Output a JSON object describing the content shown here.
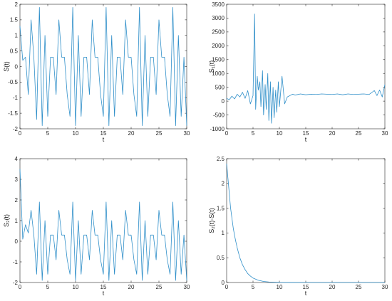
{
  "figure": {
    "line_color": "#2f8fc9",
    "axis_color": "#262626",
    "background": "#ffffff"
  },
  "chart_data": [
    {
      "type": "line",
      "title": "",
      "xlabel": "t",
      "ylabel": "S(t)",
      "xlim": [
        0,
        30
      ],
      "ylim": [
        -2,
        2
      ],
      "xticks": [
        0,
        5,
        10,
        15,
        20,
        25,
        30
      ],
      "yticks": [
        -2,
        -1.5,
        -1,
        -0.5,
        0,
        0.5,
        1,
        1.5,
        2
      ],
      "ytick_labels": [
        "-2",
        "-1.5",
        "-1",
        "-0.5",
        "0",
        "0.5",
        "1",
        "1.5",
        "2"
      ],
      "grid": false,
      "series": [
        {
          "x": [
            0,
            0.5,
            1.0,
            1.5,
            2.0,
            2.5,
            3.0,
            3.5,
            4.0,
            4.5,
            5.0,
            5.5,
            6.0,
            6.5,
            7.0,
            7.5,
            8.0,
            8.5,
            9.0,
            9.5,
            10.0,
            10.5,
            11.0,
            11.5,
            12.0,
            12.5,
            13.0,
            13.5,
            14.0,
            14.5,
            15.0,
            15.5,
            16.0,
            16.5,
            17.0,
            17.5,
            18.0,
            18.5,
            19.0,
            19.5,
            20.0,
            20.5,
            21.0,
            21.5,
            22.0,
            22.5,
            23.0,
            23.5,
            24.0,
            24.5,
            25.0,
            25.5,
            26.0,
            26.5,
            27.0,
            27.5,
            28.0,
            28.5,
            29.0,
            29.5,
            30.0
          ],
          "y": [
            1.3,
            0.2,
            0.3,
            -0.9,
            1.5,
            0.3,
            -1.7,
            1.9,
            -1.9,
            1.0,
            -1.6,
            0.3,
            0.3,
            -0.9,
            1.5,
            0.3,
            0.3,
            -0.9,
            -1.6,
            1.9,
            -1.9,
            1.0,
            -1.6,
            0.3,
            0.3,
            -0.9,
            1.5,
            0.3,
            0.3,
            -0.9,
            -1.6,
            1.9,
            -1.9,
            1.0,
            -1.6,
            0.3,
            0.3,
            -0.9,
            1.5,
            0.3,
            0.3,
            -0.9,
            -1.6,
            1.9,
            -1.9,
            1.0,
            -1.6,
            0.3,
            0.3,
            -0.9,
            1.5,
            0.3,
            0.3,
            -0.9,
            -1.6,
            1.9,
            -1.9,
            1.0,
            -1.6,
            0.3,
            -1.9
          ]
        }
      ]
    },
    {
      "type": "line",
      "title": "",
      "xlabel": "t",
      "ylabel": "S₁(t)",
      "xlim": [
        0,
        30
      ],
      "ylim": [
        -1000,
        3500
      ],
      "xticks": [
        0,
        5,
        10,
        15,
        20,
        25,
        30
      ],
      "yticks": [
        -1000,
        -500,
        0,
        500,
        1000,
        1500,
        2000,
        2500,
        3000,
        3500
      ],
      "ytick_labels": [
        "-1000",
        "-500",
        "0",
        "500",
        "1000",
        "1500",
        "2000",
        "2500",
        "3000",
        "3500"
      ],
      "grid": false,
      "series": [
        {
          "x": [
            0,
            0.5,
            1.0,
            1.5,
            2.0,
            2.5,
            3.0,
            3.5,
            4.0,
            4.5,
            5.0,
            5.3,
            5.5,
            5.8,
            6.0,
            6.3,
            6.5,
            6.8,
            7.0,
            7.3,
            7.5,
            7.8,
            8.0,
            8.3,
            8.5,
            8.8,
            9.0,
            9.3,
            9.5,
            9.8,
            10.0,
            10.5,
            11.0,
            11.5,
            12.0,
            12.5,
            13.0,
            14.0,
            15.0,
            16.0,
            17.0,
            18.0,
            19.0,
            20.0,
            21.0,
            22.0,
            23.0,
            24.0,
            25.0,
            26.0,
            27.0,
            28.0,
            28.5,
            29.0,
            29.5,
            30.0
          ],
          "y": [
            100,
            50,
            180,
            80,
            250,
            150,
            320,
            100,
            380,
            -100,
            200,
            3150,
            -300,
            900,
            400,
            700,
            -200,
            1100,
            -500,
            600,
            -300,
            1000,
            -700,
            700,
            -800,
            500,
            -600,
            400,
            -400,
            700,
            -200,
            900,
            -100,
            150,
            200,
            250,
            220,
            260,
            230,
            250,
            240,
            260,
            250,
            240,
            260,
            230,
            260,
            240,
            250,
            260,
            240,
            380,
            200,
            400,
            150,
            600
          ]
        }
      ]
    },
    {
      "type": "line",
      "title": "",
      "xlabel": "t",
      "ylabel": "S₂(t)",
      "xlim": [
        0,
        30
      ],
      "ylim": [
        -2,
        4
      ],
      "xticks": [
        0,
        5,
        10,
        15,
        20,
        25,
        30
      ],
      "yticks": [
        -2,
        -1,
        0,
        1,
        2,
        3,
        4
      ],
      "ytick_labels": [
        "-2",
        "-1",
        "0",
        "1",
        "2",
        "3",
        "4"
      ],
      "grid": false,
      "series": [
        {
          "x": [
            0,
            0.5,
            1.0,
            1.5,
            2.0,
            2.5,
            3.0,
            3.5,
            4.0,
            4.5,
            5.0,
            5.5,
            6.0,
            6.5,
            7.0,
            7.5,
            8.0,
            8.5,
            9.0,
            9.5,
            10.0,
            10.5,
            11.0,
            11.5,
            12.0,
            12.5,
            13.0,
            13.5,
            14.0,
            14.5,
            15.0,
            15.5,
            16.0,
            16.5,
            17.0,
            17.5,
            18.0,
            18.5,
            19.0,
            19.5,
            20.0,
            20.5,
            21.0,
            21.5,
            22.0,
            22.5,
            23.0,
            23.5,
            24.0,
            24.5,
            25.0,
            25.5,
            26.0,
            26.5,
            27.0,
            27.5,
            28.0,
            28.5,
            29.0,
            29.5,
            30.0
          ],
          "y": [
            3.5,
            0.1,
            0.8,
            0.4,
            1.5,
            0.3,
            -1.6,
            1.9,
            -1.9,
            1.0,
            -1.6,
            0.3,
            0.3,
            -0.9,
            1.5,
            0.3,
            0.3,
            -0.9,
            -1.6,
            1.9,
            -1.9,
            1.0,
            -1.6,
            0.3,
            0.3,
            -0.9,
            1.5,
            0.3,
            0.3,
            -0.9,
            -1.6,
            1.9,
            -1.9,
            1.0,
            -1.6,
            0.3,
            0.3,
            -0.9,
            1.5,
            0.3,
            0.3,
            -0.9,
            -1.6,
            1.9,
            -1.9,
            1.0,
            -1.6,
            0.3,
            0.3,
            -0.9,
            1.5,
            0.3,
            0.3,
            -0.9,
            -1.6,
            1.9,
            -1.9,
            1.0,
            -1.6,
            0.3,
            -1.9
          ]
        }
      ]
    },
    {
      "type": "line",
      "title": "",
      "xlabel": "t",
      "ylabel": "S₂(t)-S(t)",
      "xlim": [
        0,
        30
      ],
      "ylim": [
        0,
        2.5
      ],
      "xticks": [
        0,
        5,
        10,
        15,
        20,
        25,
        30
      ],
      "yticks": [
        0,
        0.5,
        1,
        1.5,
        2,
        2.5
      ],
      "ytick_labels": [
        "0",
        "0.5",
        "1",
        "1.5",
        "2",
        "2.5"
      ],
      "grid": false,
      "series": [
        {
          "x": [
            0,
            0.25,
            0.5,
            0.75,
            1.0,
            1.25,
            1.5,
            1.75,
            2.0,
            2.5,
            3.0,
            3.5,
            4.0,
            4.5,
            5.0,
            6.0,
            7.0,
            8.0,
            10.0,
            12.0,
            15.0,
            20.0,
            25.0,
            30.0
          ],
          "y": [
            2.4,
            2.1,
            1.8,
            1.5,
            1.3,
            1.1,
            0.95,
            0.82,
            0.7,
            0.5,
            0.36,
            0.26,
            0.18,
            0.13,
            0.09,
            0.045,
            0.022,
            0.011,
            0.003,
            0.001,
            0.0,
            0.0,
            0.0,
            0.0
          ]
        }
      ]
    }
  ]
}
